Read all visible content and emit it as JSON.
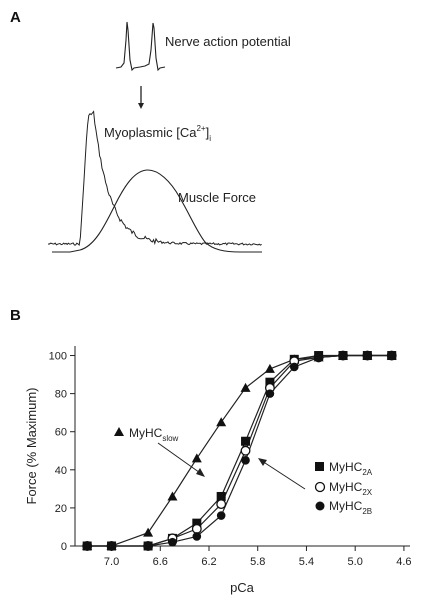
{
  "panel_a": {
    "letter": "A",
    "labels": {
      "nerve": "Nerve action potential",
      "calcium_prefix": "Myoplasmic [Ca",
      "calcium_sup": "2+",
      "calcium_close": "]",
      "calcium_sub": "i",
      "force": "Muscle Force"
    }
  },
  "panel_b": {
    "letter": "B",
    "legend": {
      "slow_main": "MyHC",
      "slow_sub": "slow",
      "a_main": "MyHC",
      "a_sub": "2A",
      "x_main": "MyHC",
      "x_sub": "2X",
      "b_main": "MyHC",
      "b_sub": "2B"
    }
  },
  "chart_data": {
    "type": "line",
    "xlabel": "pCa",
    "ylabel": "Force (% Maximum)",
    "x_reversed": true,
    "xlim": [
      7.3,
      4.55
    ],
    "ylim": [
      0,
      105
    ],
    "xticks": [
      "7.0",
      "6.6",
      "6.2",
      "5.8",
      "5.4",
      "5.0",
      "4.6"
    ],
    "xtick_values": [
      7.0,
      6.6,
      6.2,
      5.8,
      5.4,
      5.0,
      4.6
    ],
    "yticks": [
      "0",
      "20",
      "40",
      "60",
      "80",
      "100"
    ],
    "ytick_values": [
      0,
      20,
      40,
      60,
      80,
      100
    ],
    "x": [
      7.2,
      7.0,
      6.7,
      6.5,
      6.3,
      6.1,
      5.9,
      5.7,
      5.5,
      5.3,
      5.1,
      4.9,
      4.7
    ],
    "series": [
      {
        "name": "MyHC slow",
        "marker": "triangle",
        "values": [
          0,
          0,
          7,
          26,
          46,
          65,
          83,
          93,
          98,
          99,
          100,
          100,
          100
        ]
      },
      {
        "name": "MyHC 2A",
        "marker": "square",
        "values": [
          0,
          0,
          0,
          4,
          12,
          26,
          55,
          86,
          98,
          100,
          100,
          100,
          100
        ]
      },
      {
        "name": "MyHC 2X",
        "marker": "circle-open",
        "values": [
          0,
          0,
          0,
          4,
          9,
          22,
          50,
          83,
          97,
          99,
          100,
          100,
          100
        ]
      },
      {
        "name": "MyHC 2B",
        "marker": "circle-filled",
        "values": [
          0,
          0,
          0,
          2,
          5,
          16,
          45,
          80,
          94,
          99,
          100,
          100,
          100
        ]
      }
    ]
  }
}
